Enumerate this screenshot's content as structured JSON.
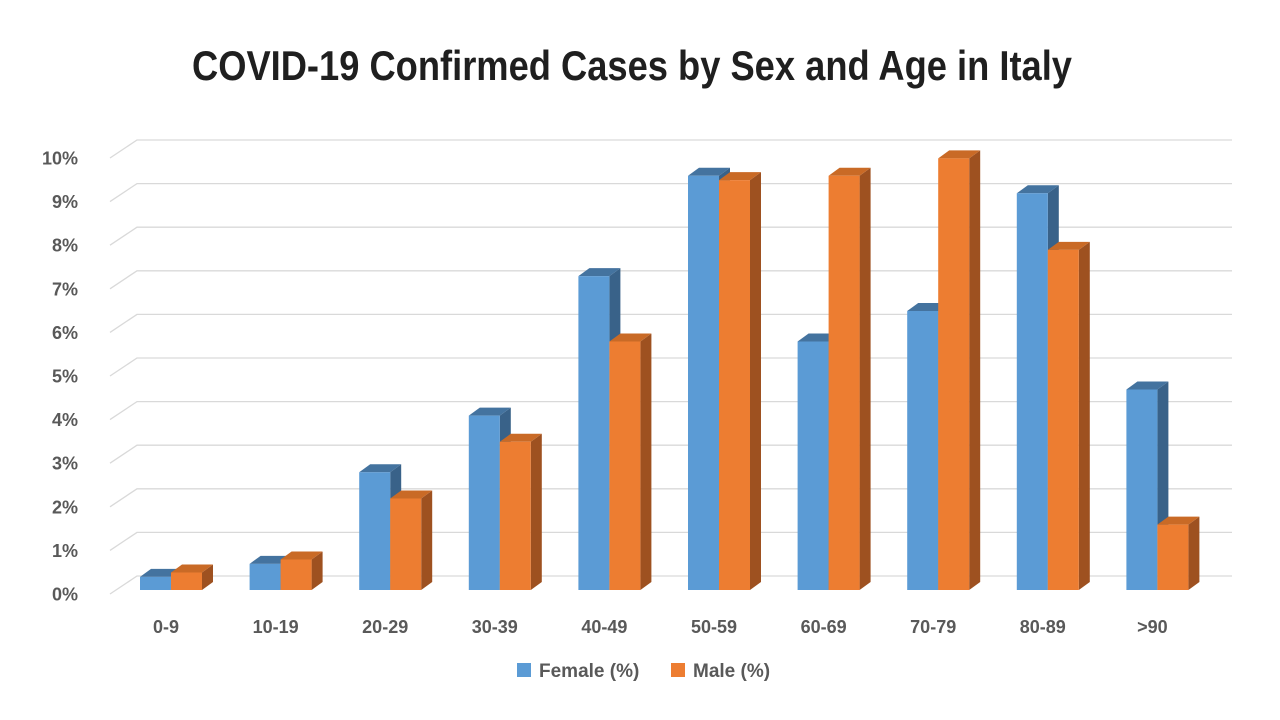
{
  "chart_data": {
    "type": "bar",
    "style": "3d-clustered-column",
    "title": "COVID-19 Confirmed Cases by Sex and Age in Italy",
    "categories": [
      "0-9",
      "10-19",
      "20-29",
      "30-39",
      "40-49",
      "50-59",
      "60-69",
      "70-79",
      "80-89",
      ">90"
    ],
    "series": [
      {
        "name": "Female (%)",
        "color": "#5B9BD5",
        "top_color": "#44739F",
        "side_color": "#396289",
        "values": [
          0.3,
          0.6,
          2.7,
          4.0,
          7.2,
          9.5,
          5.7,
          6.4,
          9.1,
          4.6
        ]
      },
      {
        "name": "Male (%)",
        "color": "#ED7D31",
        "top_color": "#C96A26",
        "side_color": "#9E5120",
        "values": [
          0.4,
          0.7,
          2.1,
          3.4,
          5.7,
          9.4,
          9.5,
          9.9,
          7.8,
          1.5
        ]
      }
    ],
    "xlabel": "",
    "ylabel": "",
    "y_ticks": [
      "0%",
      "1%",
      "2%",
      "3%",
      "4%",
      "5%",
      "6%",
      "7%",
      "8%",
      "9%",
      "10%"
    ],
    "ylim": [
      0,
      10
    ],
    "y_tick_step": 1,
    "y_unit": "%",
    "grid": true,
    "legend_position": "bottom",
    "colors": {
      "gridline": "#D9D9D9",
      "axis_text": "#595959",
      "title_text": "#1F1F1F",
      "background": "#FFFFFF"
    }
  }
}
